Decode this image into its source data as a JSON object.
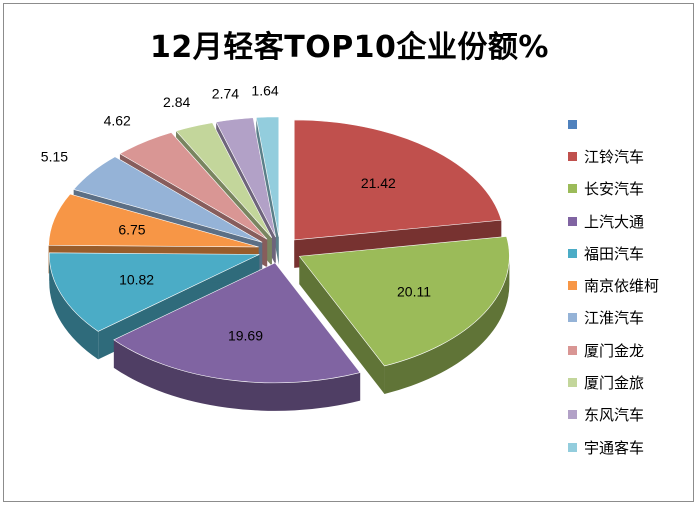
{
  "chart_data": {
    "type": "pie",
    "title": "12月轻客TOP10企业份额%",
    "legend_position": "right",
    "series": [
      {
        "name": "",
        "value": null,
        "color": "#4f81bd"
      },
      {
        "name": "江铃汽车",
        "value": 21.42,
        "color": "#c0504d"
      },
      {
        "name": "长安汽车",
        "value": 20.11,
        "color": "#9bbb59"
      },
      {
        "name": "上汽大通",
        "value": 19.69,
        "color": "#8064a2"
      },
      {
        "name": "福田汽车",
        "value": 10.82,
        "color": "#4bacc6"
      },
      {
        "name": "南京依维柯",
        "value": 6.75,
        "color": "#f79646"
      },
      {
        "name": "江淮汽车",
        "value": 5.15,
        "color": "#95b3d7"
      },
      {
        "name": "厦门金龙",
        "value": 4.62,
        "color": "#d99694"
      },
      {
        "name": "厦门金旅",
        "value": 2.84,
        "color": "#c3d69b"
      },
      {
        "name": "东风汽车",
        "value": 2.74,
        "color": "#b2a1c7"
      },
      {
        "name": "宇通客车",
        "value": 1.64,
        "color": "#93cddd"
      }
    ]
  }
}
